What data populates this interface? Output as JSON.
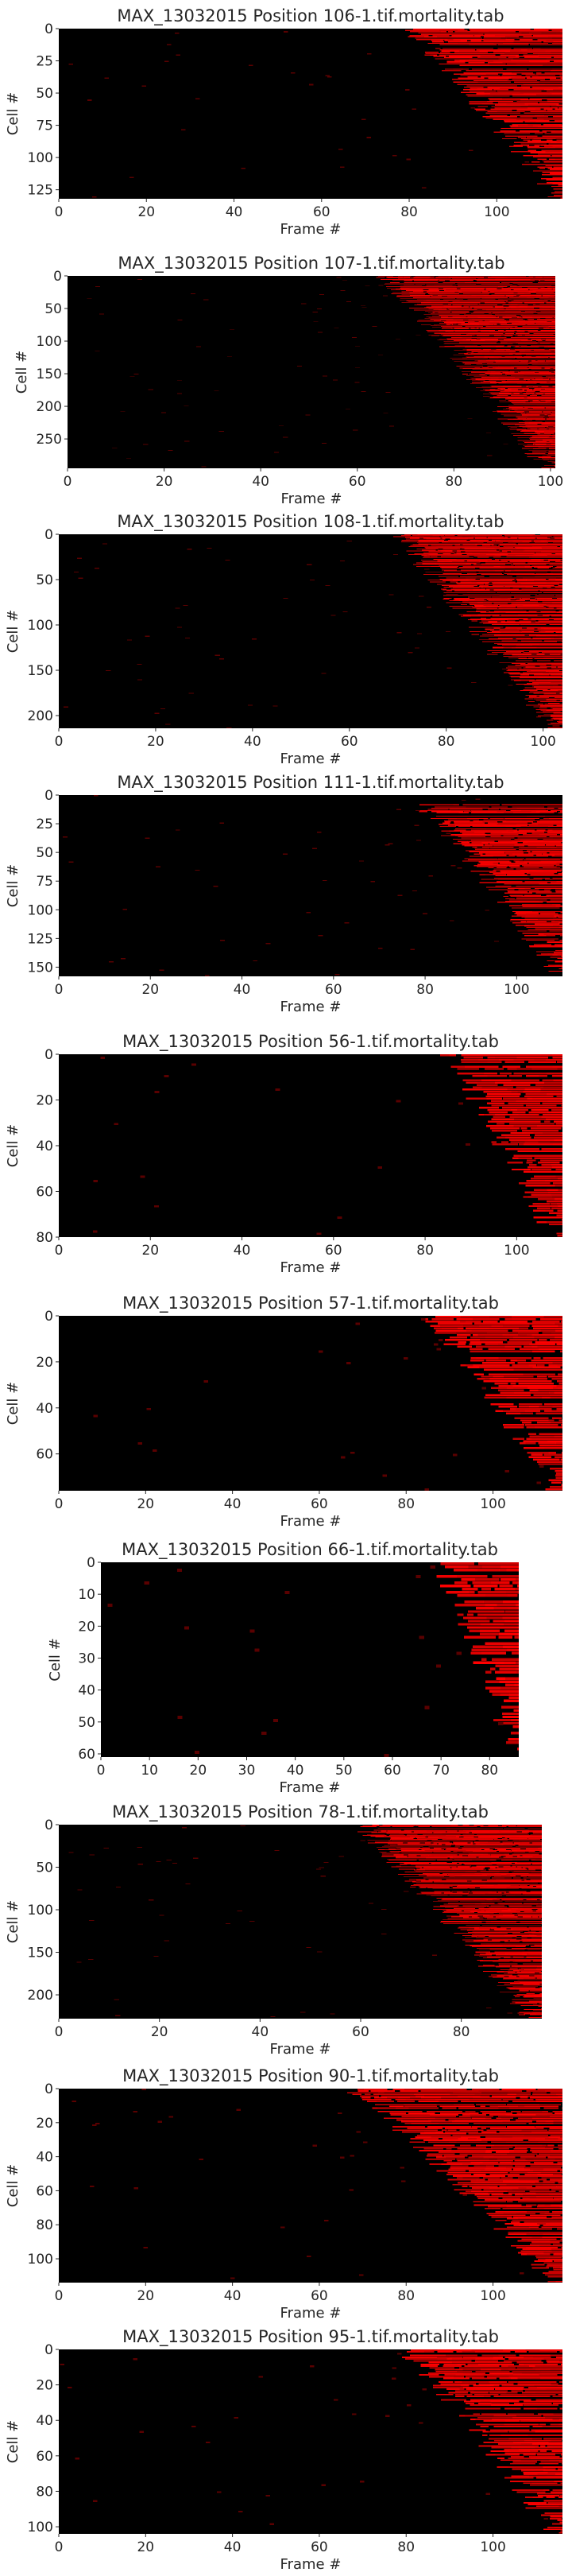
{
  "figure": {
    "background": "#ffffff",
    "dead_color": "#ff0000",
    "alive_color": "#000000"
  },
  "chart_data": [
    {
      "type": "heatmap",
      "title": "MAX_13032015 Position 106-1.tif.mortality.tab",
      "xlabel": "Frame #",
      "ylabel": "Cell #",
      "xlim": [
        0,
        115
      ],
      "ylim": [
        0,
        132
      ],
      "y_inverted": true,
      "xticks": [
        0,
        20,
        40,
        60,
        80,
        100
      ],
      "yticks": [
        0,
        25,
        50,
        75,
        100,
        125
      ],
      "death_onset": {
        "first_cell": 0,
        "last_cell": 132,
        "frame_start": 80,
        "frame_end": 115
      }
    },
    {
      "type": "heatmap",
      "title": "MAX_13032015 Position 107-1.tif.mortality.tab",
      "xlabel": "Frame #",
      "ylabel": "Cell #",
      "xlim": [
        0,
        101
      ],
      "ylim": [
        0,
        295
      ],
      "y_inverted": true,
      "xticks": [
        0,
        20,
        40,
        60,
        80,
        100
      ],
      "yticks": [
        0,
        50,
        100,
        150,
        200,
        250
      ],
      "death_onset": {
        "first_cell": 0,
        "last_cell": 295,
        "frame_start": 66,
        "frame_end": 100
      }
    },
    {
      "type": "heatmap",
      "title": "MAX_13032015 Position 108-1.tif.mortality.tab",
      "xlabel": "Frame #",
      "ylabel": "Cell #",
      "xlim": [
        0,
        104
      ],
      "ylim": [
        0,
        214
      ],
      "y_inverted": true,
      "xticks": [
        0,
        20,
        40,
        60,
        80,
        100
      ],
      "yticks": [
        0,
        50,
        100,
        150,
        200
      ],
      "death_onset": {
        "first_cell": 0,
        "last_cell": 214,
        "frame_start": 70,
        "frame_end": 103
      }
    },
    {
      "type": "heatmap",
      "title": "MAX_13032015 Position 111-1.tif.mortality.tab",
      "xlabel": "Frame #",
      "ylabel": "Cell #",
      "xlim": [
        0,
        110
      ],
      "ylim": [
        0,
        158
      ],
      "y_inverted": true,
      "xticks": [
        0,
        20,
        40,
        60,
        80,
        100
      ],
      "yticks": [
        0,
        25,
        50,
        75,
        100,
        125,
        150
      ],
      "death_onset": {
        "first_cell": 8,
        "last_cell": 158,
        "frame_start": 80,
        "frame_end": 110
      }
    },
    {
      "type": "heatmap",
      "title": "MAX_13032015 Position 56-1.tif.mortality.tab",
      "xlabel": "Frame #",
      "ylabel": "Cell #",
      "xlim": [
        0,
        110
      ],
      "ylim": [
        0,
        80
      ],
      "y_inverted": true,
      "xticks": [
        0,
        20,
        40,
        60,
        80,
        100
      ],
      "yticks": [
        0,
        20,
        40,
        60,
        80
      ],
      "death_onset": {
        "first_cell": 0,
        "last_cell": 80,
        "frame_start": 85,
        "frame_end": 109
      }
    },
    {
      "type": "heatmap",
      "title": "MAX_13032015 Position 57-1.tif.mortality.tab",
      "xlabel": "Frame #",
      "ylabel": "Cell #",
      "xlim": [
        0,
        116
      ],
      "ylim": [
        0,
        76
      ],
      "y_inverted": true,
      "xticks": [
        0,
        20,
        40,
        60,
        80,
        100
      ],
      "yticks": [
        0,
        20,
        40,
        60
      ],
      "death_onset": {
        "first_cell": 0,
        "last_cell": 76,
        "frame_start": 86,
        "frame_end": 115
      }
    },
    {
      "type": "heatmap",
      "title": "MAX_13032015 Position 66-1.tif.mortality.tab",
      "xlabel": "Frame #",
      "ylabel": "Cell #",
      "xlim": [
        0,
        86
      ],
      "ylim": [
        0,
        61
      ],
      "y_inverted": true,
      "xticks": [
        0,
        10,
        20,
        30,
        40,
        50,
        60,
        70,
        80
      ],
      "yticks": [
        0,
        10,
        20,
        30,
        40,
        50,
        60
      ],
      "death_onset": {
        "first_cell": 0,
        "last_cell": 61,
        "frame_start": 70,
        "frame_end": 86
      }
    },
    {
      "type": "heatmap",
      "title": "MAX_13032015 Position 78-1.tif.mortality.tab",
      "xlabel": "Frame #",
      "ylabel": "Cell #",
      "xlim": [
        0,
        96
      ],
      "ylim": [
        0,
        228
      ],
      "y_inverted": true,
      "xticks": [
        0,
        20,
        40,
        60,
        80
      ],
      "yticks": [
        0,
        50,
        100,
        150,
        200
      ],
      "death_onset": {
        "first_cell": 0,
        "last_cell": 228,
        "frame_start": 60,
        "frame_end": 95
      }
    },
    {
      "type": "heatmap",
      "title": "MAX_13032015 Position 90-1.tif.mortality.tab",
      "xlabel": "Frame #",
      "ylabel": "Cell #",
      "xlim": [
        0,
        116
      ],
      "ylim": [
        0,
        114
      ],
      "y_inverted": true,
      "xticks": [
        0,
        20,
        40,
        60,
        80,
        100
      ],
      "yticks": [
        0,
        20,
        40,
        60,
        80,
        100
      ],
      "death_onset": {
        "first_cell": 0,
        "last_cell": 114,
        "frame_start": 68,
        "frame_end": 115
      }
    },
    {
      "type": "heatmap",
      "title": "MAX_13032015 Position 95-1.tif.mortality.tab",
      "xlabel": "Frame #",
      "ylabel": "Cell #",
      "xlim": [
        0,
        116
      ],
      "ylim": [
        0,
        104
      ],
      "y_inverted": true,
      "xticks": [
        0,
        20,
        40,
        60,
        80,
        100
      ],
      "yticks": [
        0,
        20,
        40,
        60,
        80,
        100
      ],
      "death_onset": {
        "first_cell": 0,
        "last_cell": 104,
        "frame_start": 80,
        "frame_end": 115
      }
    }
  ]
}
